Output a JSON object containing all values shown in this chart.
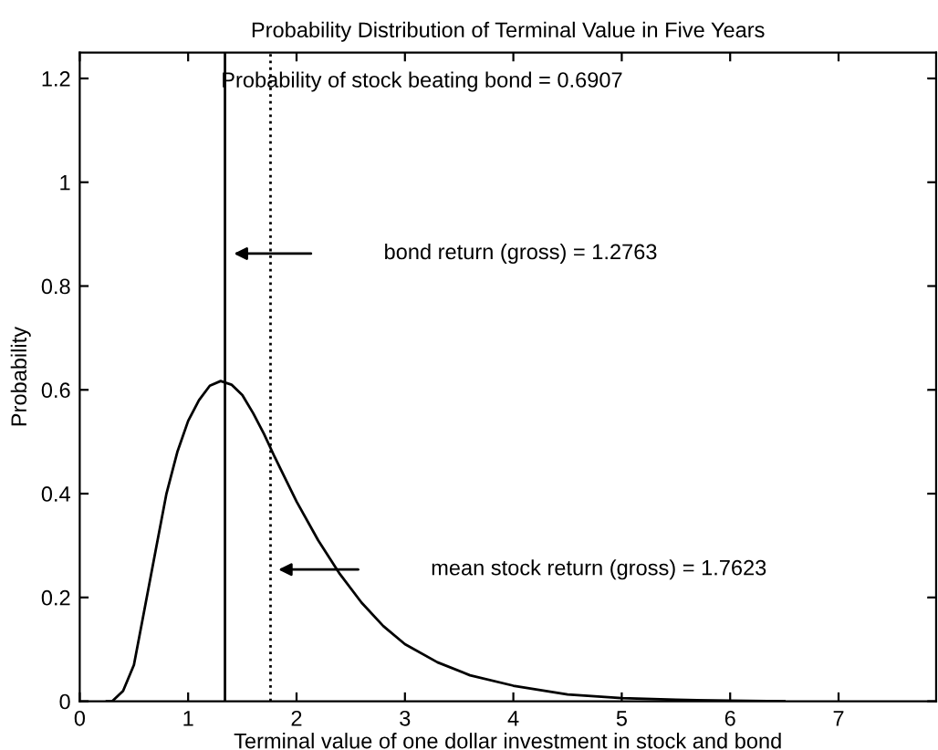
{
  "chart_data": {
    "type": "line",
    "title": "Probability Distribution of Terminal Value in Five Years",
    "xlabel": "Terminal value of one dollar investment in stock and bond",
    "ylabel": "Probability",
    "x": [
      0.25,
      0.3,
      0.4,
      0.5,
      0.6,
      0.7,
      0.8,
      0.9,
      1.0,
      1.1,
      1.2,
      1.3,
      1.4,
      1.5,
      1.6,
      1.7,
      1.8,
      2.0,
      2.2,
      2.4,
      2.6,
      2.8,
      3.0,
      3.3,
      3.6,
      4.0,
      4.5,
      5.0,
      5.5,
      6.0,
      6.5
    ],
    "series": [
      {
        "color": "#000000",
        "values": [
          0,
          0,
          0.02,
          0.07,
          0.18,
          0.29,
          0.4,
          0.48,
          0.54,
          0.58,
          0.608,
          0.617,
          0.61,
          0.59,
          0.555,
          0.515,
          0.47,
          0.385,
          0.31,
          0.245,
          0.19,
          0.145,
          0.11,
          0.075,
          0.05,
          0.03,
          0.013,
          0.006,
          0.003,
          0.001,
          0
        ]
      }
    ],
    "ref_lines": [
      {
        "axis": "x",
        "value": 1.34,
        "color": "#000000",
        "line_style": "solid"
      },
      {
        "axis": "x",
        "value": 1.76,
        "color": "#000000",
        "line_style": "dotted"
      }
    ],
    "annotations": [
      "Probability of stock beating bond = 0.6907",
      "bond return (gross) = 1.2763",
      "mean stock return (gross) = 1.7623"
    ],
    "xlim": [
      0,
      7.9
    ],
    "ylim": [
      0,
      1.25
    ],
    "xticks": [
      0,
      1,
      2,
      3,
      4,
      5,
      6,
      7
    ],
    "yticks": [
      0,
      0.2,
      0.4,
      0.6,
      0.8,
      1,
      1.2
    ],
    "grid": false,
    "legend": false,
    "marker": "none",
    "line_style": "solid"
  }
}
